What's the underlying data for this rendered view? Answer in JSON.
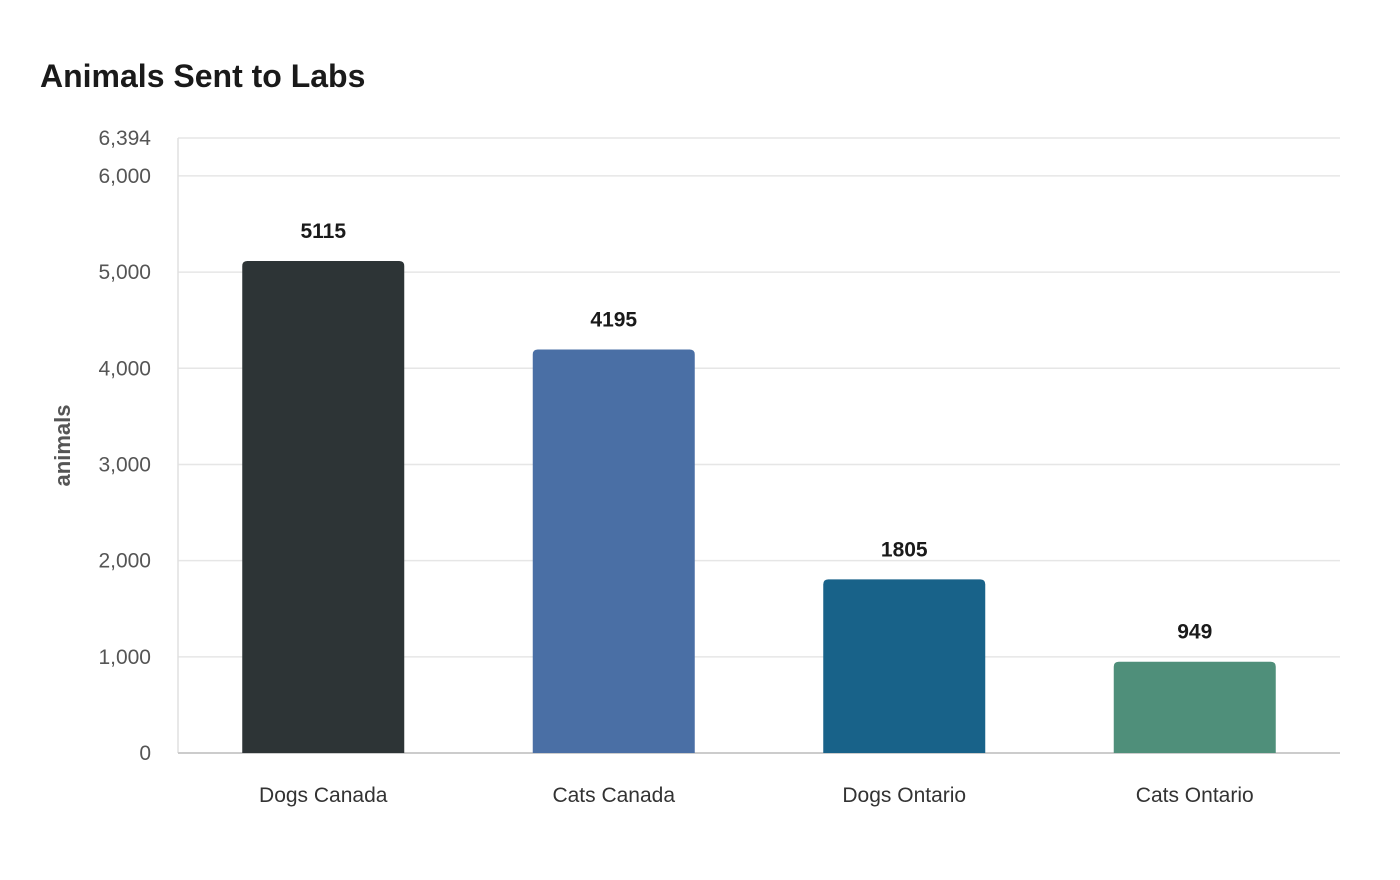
{
  "chart_data": {
    "type": "bar",
    "title": "Animals Sent to Labs",
    "xlabel": "",
    "ylabel": "animals",
    "categories": [
      "Dogs Canada",
      "Cats Canada",
      "Dogs Ontario",
      "Cats Ontario"
    ],
    "values": [
      5115,
      4195,
      1805,
      949
    ],
    "value_labels": [
      "5115",
      "4195",
      "1805",
      "949"
    ],
    "colors": [
      "#2d3436",
      "#4a6fa5",
      "#186289",
      "#4f8f7a"
    ],
    "ylim": [
      0,
      6394
    ],
    "yticks": [
      0,
      1000,
      2000,
      3000,
      4000,
      5000,
      6000,
      6394
    ],
    "ytick_labels": [
      "0",
      "1,000",
      "2,000",
      "3,000",
      "4,000",
      "5,000",
      "6,000",
      "6,394"
    ],
    "grid": true,
    "legend": "none"
  }
}
